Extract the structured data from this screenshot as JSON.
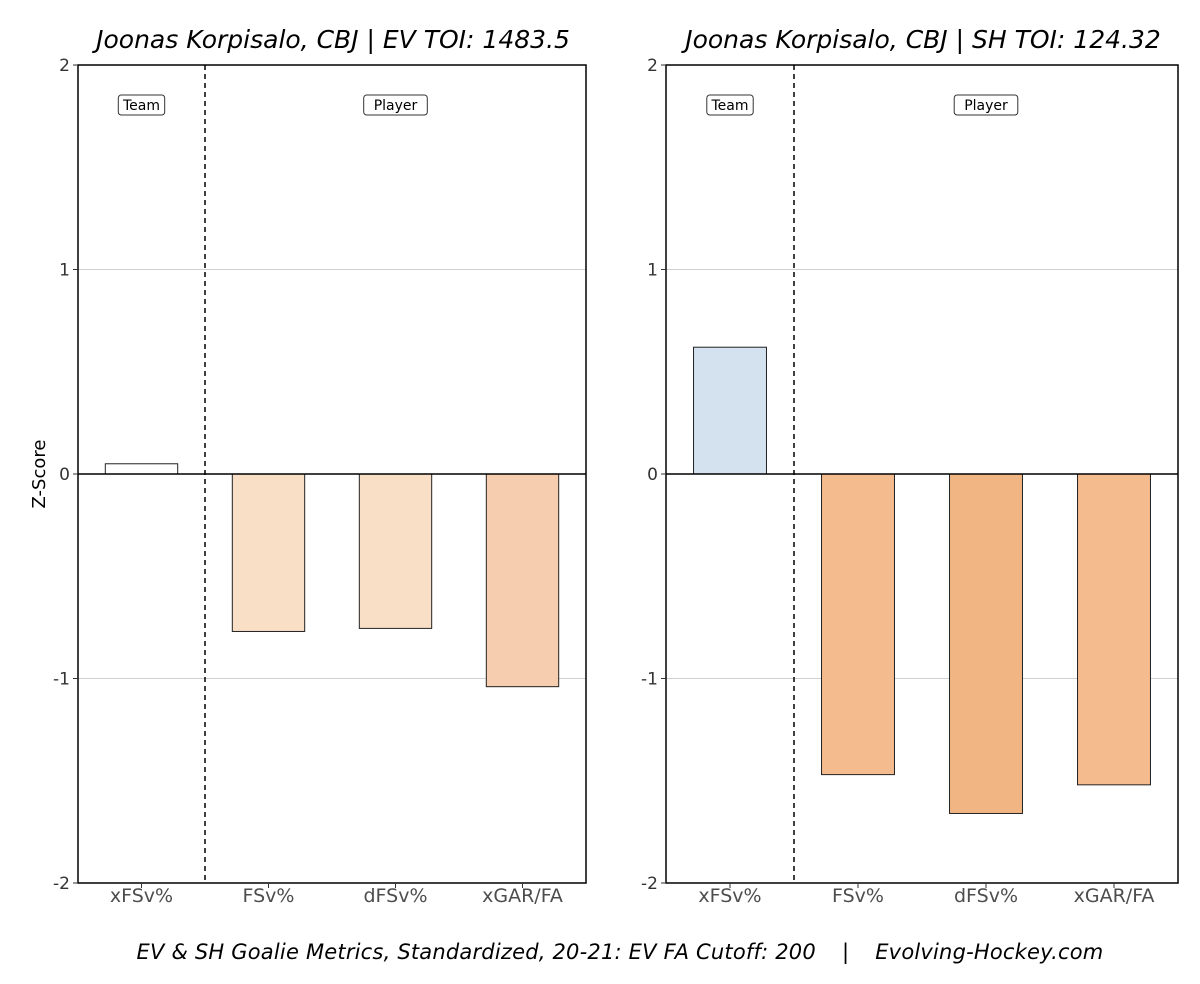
{
  "chart_data": [
    {
      "type": "bar",
      "title": "Joonas Korpisalo, CBJ | EV TOI: 1483.5",
      "ylabel": "Z-Score",
      "ylim": [
        -2,
        2
      ],
      "yticks": [
        2,
        1,
        0,
        -1,
        -2
      ],
      "categories": [
        "xFSv%",
        "FSv%",
        "dFSv%",
        "xGAR/FA"
      ],
      "values": [
        0.05,
        -0.77,
        -0.755,
        -1.04
      ],
      "colors": [
        "#ffffff",
        "#fadfc7",
        "#fadfc7",
        "#f7cdaf"
      ],
      "group_labels": {
        "team": "Team",
        "player": "Player"
      },
      "grid": "horizontal"
    },
    {
      "type": "bar",
      "title": "Joonas Korpisalo, CBJ | SH TOI: 124.32",
      "ylabel": "",
      "ylim": [
        -2,
        2
      ],
      "yticks": [
        2,
        1,
        0,
        -1,
        -2
      ],
      "categories": [
        "xFSv%",
        "FSv%",
        "dFSv%",
        "xGAR/FA"
      ],
      "values": [
        0.62,
        -1.47,
        -1.66,
        -1.52
      ],
      "colors": [
        "#d4e1ee",
        "#f3bb8e",
        "#f1b584",
        "#f3bb8e"
      ],
      "group_labels": {
        "team": "Team",
        "player": "Player"
      },
      "grid": "horizontal"
    }
  ],
  "caption": {
    "left": "EV & SH Goalie Metrics, Standardized, 20-21: EV FA Cutoff: 200",
    "separator": "|",
    "right": "Evolving-Hockey.com"
  }
}
